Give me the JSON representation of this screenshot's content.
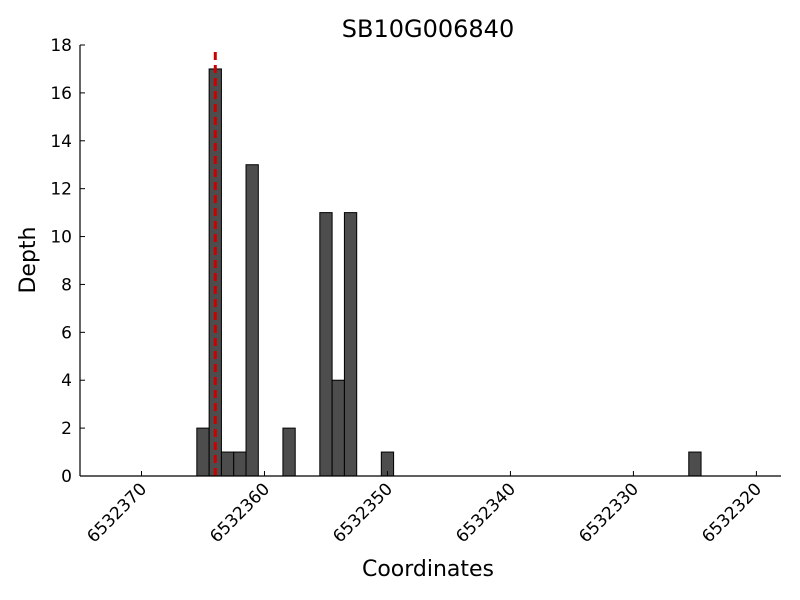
{
  "chart_data": {
    "type": "bar",
    "title": "SB10G006840",
    "xlabel": "Coordinates",
    "ylabel": "Depth",
    "x_inverted": true,
    "xlim": [
      6532375,
      6532318
    ],
    "ylim": [
      0,
      18
    ],
    "xticks": [
      6532370,
      6532360,
      6532350,
      6532340,
      6532330,
      6532320
    ],
    "yticks": [
      0,
      2,
      4,
      6,
      8,
      10,
      12,
      14,
      16,
      18
    ],
    "bin_width": 1,
    "bars": [
      {
        "x": 6532365,
        "value": 2
      },
      {
        "x": 6532364,
        "value": 17
      },
      {
        "x": 6532363,
        "value": 1
      },
      {
        "x": 6532362,
        "value": 1
      },
      {
        "x": 6532361,
        "value": 13
      },
      {
        "x": 6532358,
        "value": 2
      },
      {
        "x": 6532355,
        "value": 11
      },
      {
        "x": 6532354,
        "value": 4
      },
      {
        "x": 6532353,
        "value": 11
      },
      {
        "x": 6532350,
        "value": 1
      },
      {
        "x": 6532325,
        "value": 1
      }
    ],
    "marker_line": {
      "x": 6532364,
      "color": "#cc0000",
      "style": "dashed"
    },
    "bar_color": "#4d4d4d",
    "grid": false
  }
}
